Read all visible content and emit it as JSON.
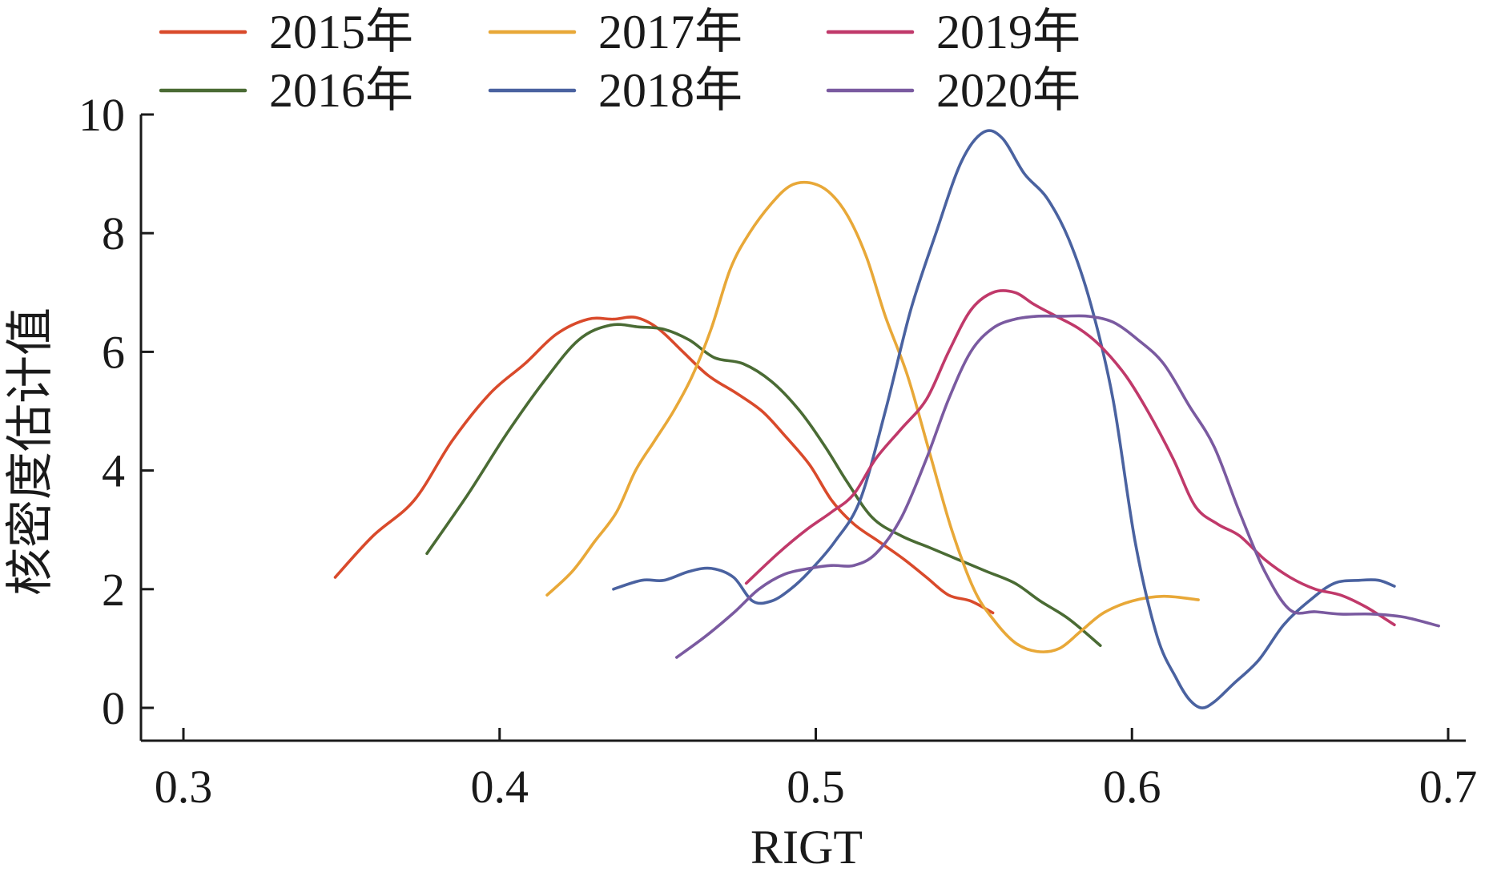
{
  "chart_data": {
    "type": "line",
    "xlabel": "RIGT",
    "ylabel": "核密度估计值",
    "xlim": [
      0.28,
      0.7
    ],
    "ylim": [
      -0.5,
      10
    ],
    "x_ticks": [
      0.3,
      0.4,
      0.5,
      0.6,
      0.7
    ],
    "x_tick_labels": [
      "0.3",
      "0.4",
      "0.5",
      "0.6",
      "0.7"
    ],
    "y_ticks": [
      0,
      2,
      4,
      6,
      8,
      10
    ],
    "y_tick_labels": [
      "0",
      "2",
      "4",
      "6",
      "8",
      "10"
    ],
    "grid": false,
    "legend_position": "top",
    "series": [
      {
        "name": "2015年",
        "color": "#d94a2b",
        "x": [
          0.348,
          0.36,
          0.373,
          0.385,
          0.397,
          0.408,
          0.418,
          0.428,
          0.436,
          0.443,
          0.45,
          0.458,
          0.466,
          0.475,
          0.483,
          0.49,
          0.498,
          0.505,
          0.512,
          0.52,
          0.528,
          0.535,
          0.542,
          0.549,
          0.556
        ],
        "values": [
          2.2,
          2.9,
          3.5,
          4.5,
          5.3,
          5.8,
          6.3,
          6.55,
          6.55,
          6.58,
          6.4,
          6.0,
          5.6,
          5.3,
          5.0,
          4.6,
          4.1,
          3.5,
          3.1,
          2.8,
          2.5,
          2.2,
          1.9,
          1.8,
          1.6
        ]
      },
      {
        "name": "2016年",
        "color": "#4a6b34",
        "x": [
          0.377,
          0.39,
          0.402,
          0.414,
          0.425,
          0.435,
          0.444,
          0.452,
          0.46,
          0.468,
          0.477,
          0.486,
          0.495,
          0.503,
          0.51,
          0.518,
          0.527,
          0.536,
          0.545,
          0.554,
          0.563,
          0.571,
          0.58,
          0.59
        ],
        "values": [
          2.6,
          3.6,
          4.6,
          5.5,
          6.2,
          6.45,
          6.42,
          6.38,
          6.2,
          5.9,
          5.8,
          5.5,
          5.0,
          4.4,
          3.8,
          3.2,
          2.9,
          2.7,
          2.5,
          2.3,
          2.1,
          1.8,
          1.5,
          1.05
        ]
      },
      {
        "name": "2017年",
        "color": "#e8a838",
        "x": [
          0.415,
          0.423,
          0.43,
          0.437,
          0.443,
          0.449,
          0.455,
          0.461,
          0.467,
          0.473,
          0.479,
          0.486,
          0.492,
          0.498,
          0.504,
          0.51,
          0.516,
          0.522,
          0.529,
          0.536,
          0.543,
          0.55,
          0.556,
          0.563,
          0.57,
          0.577,
          0.584,
          0.591,
          0.6,
          0.61,
          0.621
        ],
        "values": [
          1.9,
          2.3,
          2.8,
          3.3,
          4.0,
          4.5,
          5.0,
          5.6,
          6.4,
          7.4,
          8.0,
          8.5,
          8.8,
          8.85,
          8.7,
          8.3,
          7.6,
          6.6,
          5.6,
          4.3,
          3.0,
          2.0,
          1.5,
          1.1,
          0.95,
          1.0,
          1.3,
          1.6,
          1.8,
          1.88,
          1.82
        ]
      },
      {
        "name": "2018年",
        "color": "#4a62a0",
        "x": [
          0.436,
          0.445,
          0.452,
          0.46,
          0.467,
          0.474,
          0.48,
          0.486,
          0.492,
          0.498,
          0.506,
          0.514,
          0.522,
          0.53,
          0.538,
          0.546,
          0.553,
          0.559,
          0.566,
          0.573,
          0.58,
          0.587,
          0.594,
          0.601,
          0.608,
          0.614,
          0.618,
          0.622,
          0.626,
          0.632,
          0.64,
          0.648,
          0.656,
          0.664,
          0.672,
          0.678,
          0.683
        ],
        "values": [
          2.0,
          2.15,
          2.15,
          2.3,
          2.35,
          2.2,
          1.8,
          1.8,
          2.0,
          2.3,
          2.8,
          3.5,
          5.0,
          6.7,
          8.0,
          9.2,
          9.7,
          9.6,
          9.0,
          8.6,
          7.9,
          6.8,
          5.2,
          2.8,
          1.2,
          0.5,
          0.15,
          0.0,
          0.1,
          0.4,
          0.8,
          1.4,
          1.8,
          2.1,
          2.15,
          2.15,
          2.05
        ]
      },
      {
        "name": "2019年",
        "color": "#c0396a",
        "x": [
          0.478,
          0.488,
          0.497,
          0.505,
          0.512,
          0.519,
          0.527,
          0.535,
          0.542,
          0.549,
          0.556,
          0.563,
          0.569,
          0.576,
          0.583,
          0.59,
          0.598,
          0.605,
          0.613,
          0.62,
          0.627,
          0.634,
          0.642,
          0.65,
          0.658,
          0.666,
          0.674,
          0.683
        ],
        "values": [
          2.1,
          2.6,
          3.0,
          3.3,
          3.6,
          4.2,
          4.7,
          5.2,
          6.0,
          6.7,
          7.0,
          7.0,
          6.8,
          6.6,
          6.4,
          6.1,
          5.6,
          5.0,
          4.2,
          3.4,
          3.1,
          2.9,
          2.5,
          2.2,
          2.0,
          1.9,
          1.7,
          1.4
        ]
      },
      {
        "name": "2020年",
        "color": "#7a5aa0",
        "x": [
          0.456,
          0.465,
          0.474,
          0.482,
          0.49,
          0.498,
          0.505,
          0.512,
          0.519,
          0.527,
          0.535,
          0.542,
          0.549,
          0.556,
          0.563,
          0.57,
          0.578,
          0.586,
          0.594,
          0.602,
          0.61,
          0.618,
          0.626,
          0.634,
          0.642,
          0.65,
          0.658,
          0.666,
          0.676,
          0.686,
          0.697
        ],
        "values": [
          0.85,
          1.2,
          1.6,
          2.0,
          2.25,
          2.35,
          2.4,
          2.4,
          2.6,
          3.2,
          4.2,
          5.2,
          6.0,
          6.4,
          6.55,
          6.6,
          6.6,
          6.6,
          6.5,
          6.2,
          5.8,
          5.1,
          4.4,
          3.3,
          2.3,
          1.65,
          1.62,
          1.58,
          1.58,
          1.53,
          1.38
        ]
      }
    ]
  }
}
